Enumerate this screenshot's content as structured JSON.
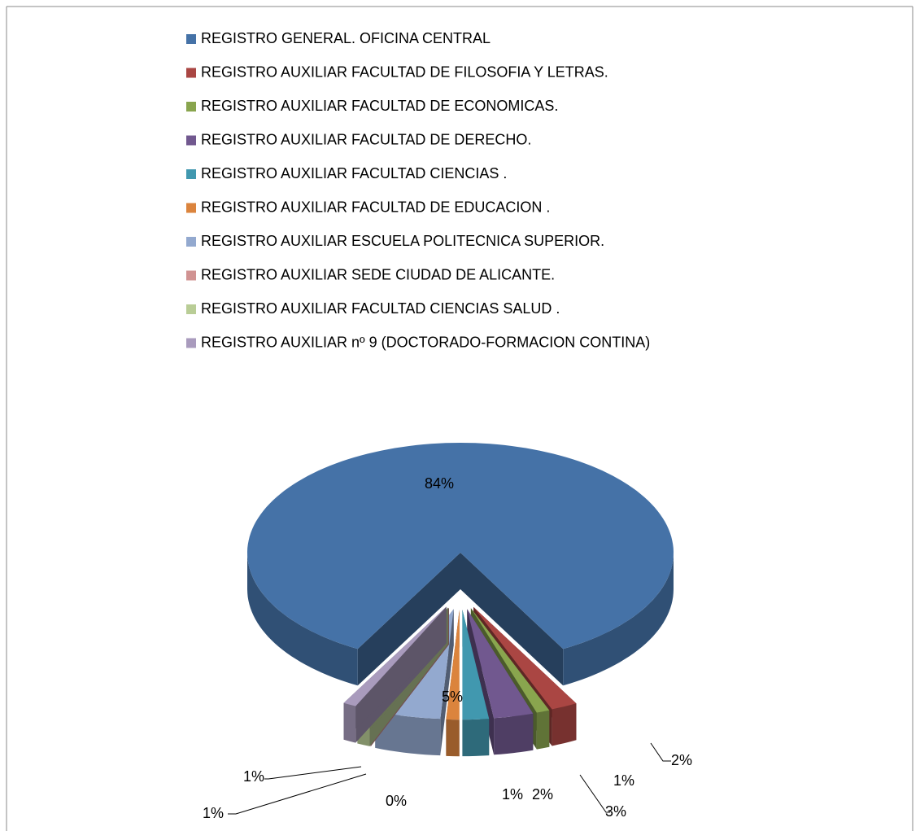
{
  "chart_data": {
    "type": "pie",
    "categories": [
      "REGISTRO GENERAL. OFICINA CENTRAL",
      "REGISTRO AUXILIAR FACULTAD DE FILOSOFIA Y LETRAS.",
      "REGISTRO AUXILIAR FACULTAD DE ECONOMICAS.",
      "REGISTRO AUXILIAR FACULTAD DE DERECHO.",
      "REGISTRO AUXILIAR FACULTAD CIENCIAS .",
      "REGISTRO AUXILIAR FACULTAD DE EDUCACION .",
      "REGISTRO AUXILIAR ESCUELA POLITECNICA SUPERIOR.",
      "REGISTRO AUXILIAR SEDE CIUDAD DE ALICANTE.",
      "REGISTRO AUXILIAR FACULTAD CIENCIAS SALUD .",
      "REGISTRO AUXILIAR nº 9 (DOCTORADO-FORMACION CONTINA)"
    ],
    "values": [
      84,
      2,
      1,
      3,
      2,
      1,
      5,
      0,
      1,
      1
    ],
    "value_labels": [
      "84%",
      "2%",
      "1%",
      "3%",
      "2%",
      "1%",
      "5%",
      "0%",
      "1%",
      "1%"
    ],
    "colors": [
      "#4572A7",
      "#AA4643",
      "#89A54E",
      "#71588F",
      "#4198AF",
      "#DB843D",
      "#93A9CF",
      "#D19392",
      "#B9CD96",
      "#A99BBD"
    ],
    "legend": "top"
  }
}
